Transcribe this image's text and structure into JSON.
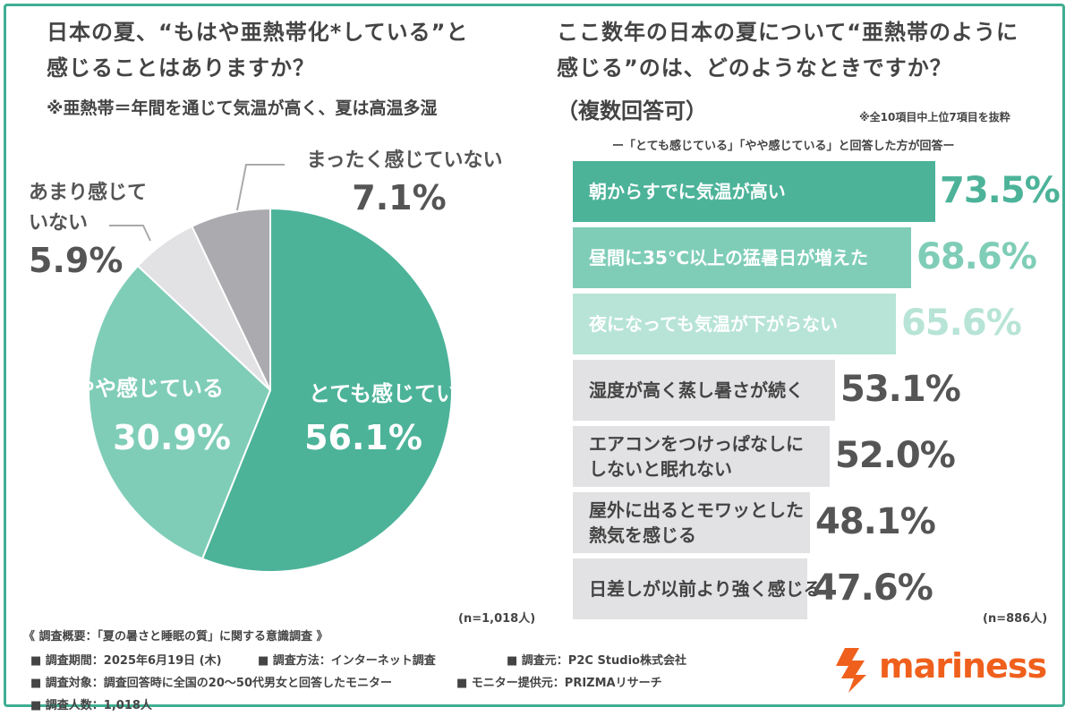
{
  "left": {
    "title_line1": "日本の夏、“もはや亜熱帯化*している”と",
    "title_line2": "感じることはありますか？",
    "note": "※亜熱帯＝年間を通じて気温が高く、夏は高温多湿",
    "n": "(n=1,018人)"
  },
  "right": {
    "title_line1": "ここ数年の日本の夏について“亜熱帯のように",
    "title_line2": "感じる”のは、どのようなときですか？",
    "subtitle": "（複数回答可）",
    "note": "※全10項目中上位7項目を抜粋",
    "caption": "ー「とても感じている」「やや感じている」と回答した方が回答ー",
    "n": "(n=886人)"
  },
  "chart_data": [
    {
      "type": "pie",
      "categories": [
        "とても感じている",
        "やや感じている",
        "あまり感じていない",
        "まったく感じていない"
      ],
      "labels": [
        "とても感じている",
        "やや感じている",
        "あまり感じて\nいない",
        "まったく感じていない"
      ],
      "values": [
        56.1,
        30.9,
        5.9,
        7.1
      ],
      "value_labels": [
        "56.1%",
        "30.9%",
        "5.9%",
        "7.1%"
      ],
      "colors": [
        "#4cb399",
        "#7fcdb7",
        "#e2e1e3",
        "#abaaaf"
      ],
      "start": "12 o'clock, clockwise"
    },
    {
      "type": "bar",
      "orientation": "horizontal",
      "categories": [
        "朝からすでに気温が高い",
        "昼間に35℃以上の猛暑日が増えた",
        "夜になっても気温が下がらない",
        "湿度が高く蒸し暑さが続く",
        "エアコンをつけっぱなしにしないと眠れない",
        "屋外に出るとモワッとした熱気を感じる",
        "日差しが以前より強く感じる"
      ],
      "labels": [
        [
          "朝からすでに気温が高い"
        ],
        [
          "昼間に35℃以上の猛暑日が増えた"
        ],
        [
          "夜になっても気温が下がらない"
        ],
        [
          "湿度が高く蒸し暑さが続く"
        ],
        [
          "エアコンをつけっぱなしに",
          "しないと眠れない"
        ],
        [
          "屋外に出るとモワッとした",
          "熱気を感じる"
        ],
        [
          "日差しが以前より強く感じる"
        ]
      ],
      "values": [
        73.5,
        68.6,
        65.6,
        53.1,
        52.0,
        48.1,
        47.6
      ],
      "value_labels": [
        "73.5%",
        "68.6%",
        "65.6%",
        "53.1%",
        "52.0%",
        "48.1%",
        "47.6%"
      ],
      "bar_colors": [
        "#4cb399",
        "#7fcdb7",
        "#b7e4d6",
        "#e2e1e3",
        "#e2e1e3",
        "#e2e1e3",
        "#e2e1e3"
      ],
      "label_colors": [
        "#ffffff",
        "#ffffff",
        "#ffffff",
        "#444444",
        "#444444",
        "#444444",
        "#444444"
      ],
      "value_colors": [
        "#4cb399",
        "#7fcdb7",
        "#b7e4d6",
        "#555555",
        "#555555",
        "#555555",
        "#555555"
      ]
    }
  ],
  "footer": {
    "title": "《 調査概要：「夏の暑さと睡眠の質」に関する意識調査 》",
    "period": "■ 調査期間：2025年6月19日 (木)",
    "method": "■ 調査方法：インターネット調査",
    "org": "■ 調査元：P2C Studio株式会社",
    "target": "■ 調査対象：調査回答時に全国の20～50代男女と回答したモニター",
    "provider": "■ モニター提供元：PRIZMAリサーチ",
    "count": "■ 調査人数：1,018人"
  },
  "logo": {
    "text": "mariness",
    "color": "#f0601d"
  }
}
